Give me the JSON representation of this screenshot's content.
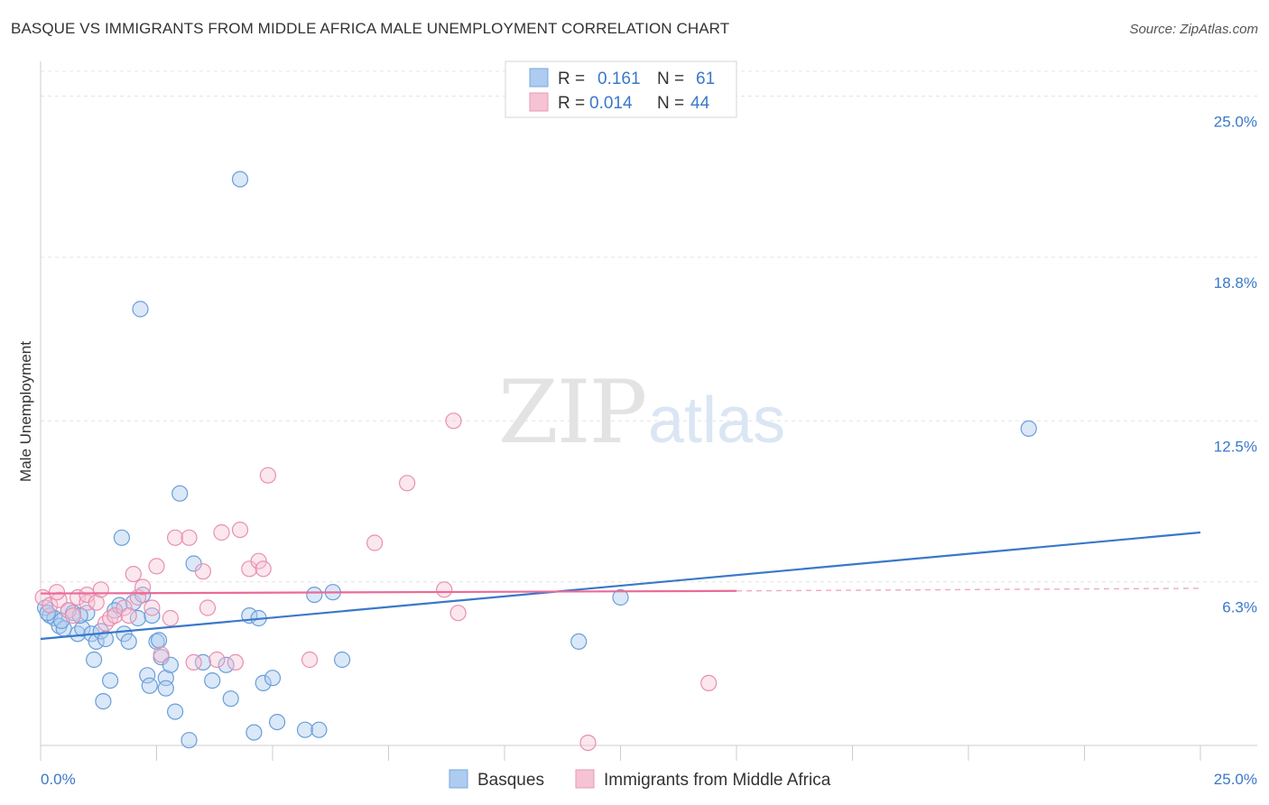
{
  "header": {
    "title": "BASQUE VS IMMIGRANTS FROM MIDDLE AFRICA MALE UNEMPLOYMENT CORRELATION CHART",
    "source": "Source: ZipAtlas.com"
  },
  "watermark": {
    "zip": "ZIP",
    "atlas": "atlas"
  },
  "colors": {
    "blue": "#3a78c9",
    "blue_fill": "#aecbf0",
    "pink": "#ea6b98",
    "pink_fill": "#f6c3d4"
  },
  "legend_top": {
    "rows": [
      {
        "r_label": "R =",
        "r_value": "0.161",
        "n_label": "N =",
        "n_value": "61"
      },
      {
        "r_label": "R =",
        "r_value": "0.014",
        "n_label": "N =",
        "n_value": "44"
      }
    ]
  },
  "legend_bottom": [
    "Basques",
    "Immigrants from Middle Africa"
  ],
  "chart_data": {
    "type": "scatter",
    "title": "BASQUE VS IMMIGRANTS FROM MIDDLE AFRICA MALE UNEMPLOYMENT CORRELATION CHART",
    "xlabel": "",
    "ylabel": "Male Unemployment",
    "xlim": [
      0,
      25
    ],
    "ylim": [
      0,
      26.2
    ],
    "x_tick_labels": [
      "0.0%",
      "25.0%"
    ],
    "y_ticks": [
      6.3,
      12.5,
      18.8,
      25.0
    ],
    "y_tick_labels": [
      "6.3%",
      "12.5%",
      "18.8%",
      "25.0%"
    ],
    "series": [
      {
        "name": "Basques",
        "color": "blue",
        "R": 0.161,
        "N": 61,
        "trend": {
          "x0": 0,
          "y0": 4.1,
          "x1": 25,
          "y1": 8.2
        },
        "points": [
          [
            0.1,
            5.3
          ],
          [
            0.2,
            5.0
          ],
          [
            0.3,
            4.9
          ],
          [
            0.4,
            4.6
          ],
          [
            0.5,
            4.5
          ],
          [
            0.6,
            5.2
          ],
          [
            0.7,
            5.1
          ],
          [
            0.8,
            4.3
          ],
          [
            0.9,
            4.5
          ],
          [
            1.0,
            5.1
          ],
          [
            1.1,
            4.3
          ],
          [
            1.2,
            4.0
          ],
          [
            1.3,
            4.4
          ],
          [
            1.4,
            4.1
          ],
          [
            1.15,
            3.3
          ],
          [
            1.35,
            1.7
          ],
          [
            1.5,
            2.5
          ],
          [
            1.7,
            5.4
          ],
          [
            1.8,
            4.3
          ],
          [
            1.9,
            4.0
          ],
          [
            2.0,
            5.5
          ],
          [
            2.1,
            4.9
          ],
          [
            2.2,
            5.8
          ],
          [
            2.3,
            2.7
          ],
          [
            2.35,
            2.3
          ],
          [
            2.4,
            5.0
          ],
          [
            2.5,
            4.0
          ],
          [
            2.6,
            3.4
          ],
          [
            2.7,
            2.6
          ],
          [
            2.7,
            2.2
          ],
          [
            2.8,
            3.1
          ],
          [
            2.9,
            1.3
          ],
          [
            3.0,
            9.7
          ],
          [
            3.3,
            7.0
          ],
          [
            3.2,
            0.2
          ],
          [
            3.5,
            3.2
          ],
          [
            3.7,
            2.5
          ],
          [
            4.0,
            3.1
          ],
          [
            4.1,
            1.8
          ],
          [
            4.3,
            21.8
          ],
          [
            4.5,
            5.0
          ],
          [
            4.6,
            0.5
          ],
          [
            4.7,
            4.9
          ],
          [
            4.8,
            2.4
          ],
          [
            5.0,
            2.6
          ],
          [
            5.1,
            0.9
          ],
          [
            5.7,
            0.6
          ],
          [
            5.9,
            5.8
          ],
          [
            6.0,
            0.6
          ],
          [
            6.3,
            5.9
          ],
          [
            6.5,
            3.3
          ],
          [
            11.6,
            4.0
          ],
          [
            12.5,
            5.7
          ],
          [
            21.3,
            12.2
          ],
          [
            2.15,
            16.8
          ],
          [
            1.75,
            8.0
          ],
          [
            0.15,
            5.1
          ],
          [
            0.45,
            4.8
          ],
          [
            1.6,
            5.2
          ],
          [
            0.85,
            5.0
          ],
          [
            2.55,
            4.05
          ]
        ]
      },
      {
        "name": "Immigrants from Middle Africa",
        "color": "pink",
        "R": 0.014,
        "N": 44,
        "trend": {
          "x0": 0,
          "y0": 5.85,
          "x1": 15,
          "y1": 5.95,
          "dash_to_x": 25,
          "dash_to_y": 6.05
        },
        "points": [
          [
            0.05,
            5.7
          ],
          [
            0.2,
            5.4
          ],
          [
            0.4,
            5.6
          ],
          [
            0.6,
            5.2
          ],
          [
            0.7,
            5.0
          ],
          [
            0.8,
            5.7
          ],
          [
            1.0,
            5.5
          ],
          [
            1.0,
            5.8
          ],
          [
            1.2,
            5.5
          ],
          [
            1.3,
            6.0
          ],
          [
            1.4,
            4.7
          ],
          [
            1.5,
            4.9
          ],
          [
            1.6,
            5.0
          ],
          [
            1.8,
            5.3
          ],
          [
            1.9,
            5.0
          ],
          [
            2.0,
            6.6
          ],
          [
            2.1,
            5.7
          ],
          [
            2.2,
            6.1
          ],
          [
            2.4,
            5.3
          ],
          [
            2.5,
            6.9
          ],
          [
            2.6,
            3.5
          ],
          [
            2.8,
            4.9
          ],
          [
            2.9,
            8.0
          ],
          [
            3.2,
            8.0
          ],
          [
            3.3,
            3.2
          ],
          [
            3.5,
            6.7
          ],
          [
            3.6,
            5.3
          ],
          [
            3.8,
            3.3
          ],
          [
            3.9,
            8.2
          ],
          [
            4.2,
            3.2
          ],
          [
            4.3,
            8.3
          ],
          [
            4.5,
            6.8
          ],
          [
            4.7,
            7.1
          ],
          [
            4.8,
            6.8
          ],
          [
            4.9,
            10.4
          ],
          [
            5.8,
            3.3
          ],
          [
            7.2,
            7.8
          ],
          [
            7.9,
            10.1
          ],
          [
            8.7,
            6.0
          ],
          [
            8.9,
            12.5
          ],
          [
            9.0,
            5.1
          ],
          [
            11.8,
            0.1
          ],
          [
            14.4,
            2.4
          ],
          [
            0.35,
            5.9
          ]
        ]
      }
    ]
  }
}
